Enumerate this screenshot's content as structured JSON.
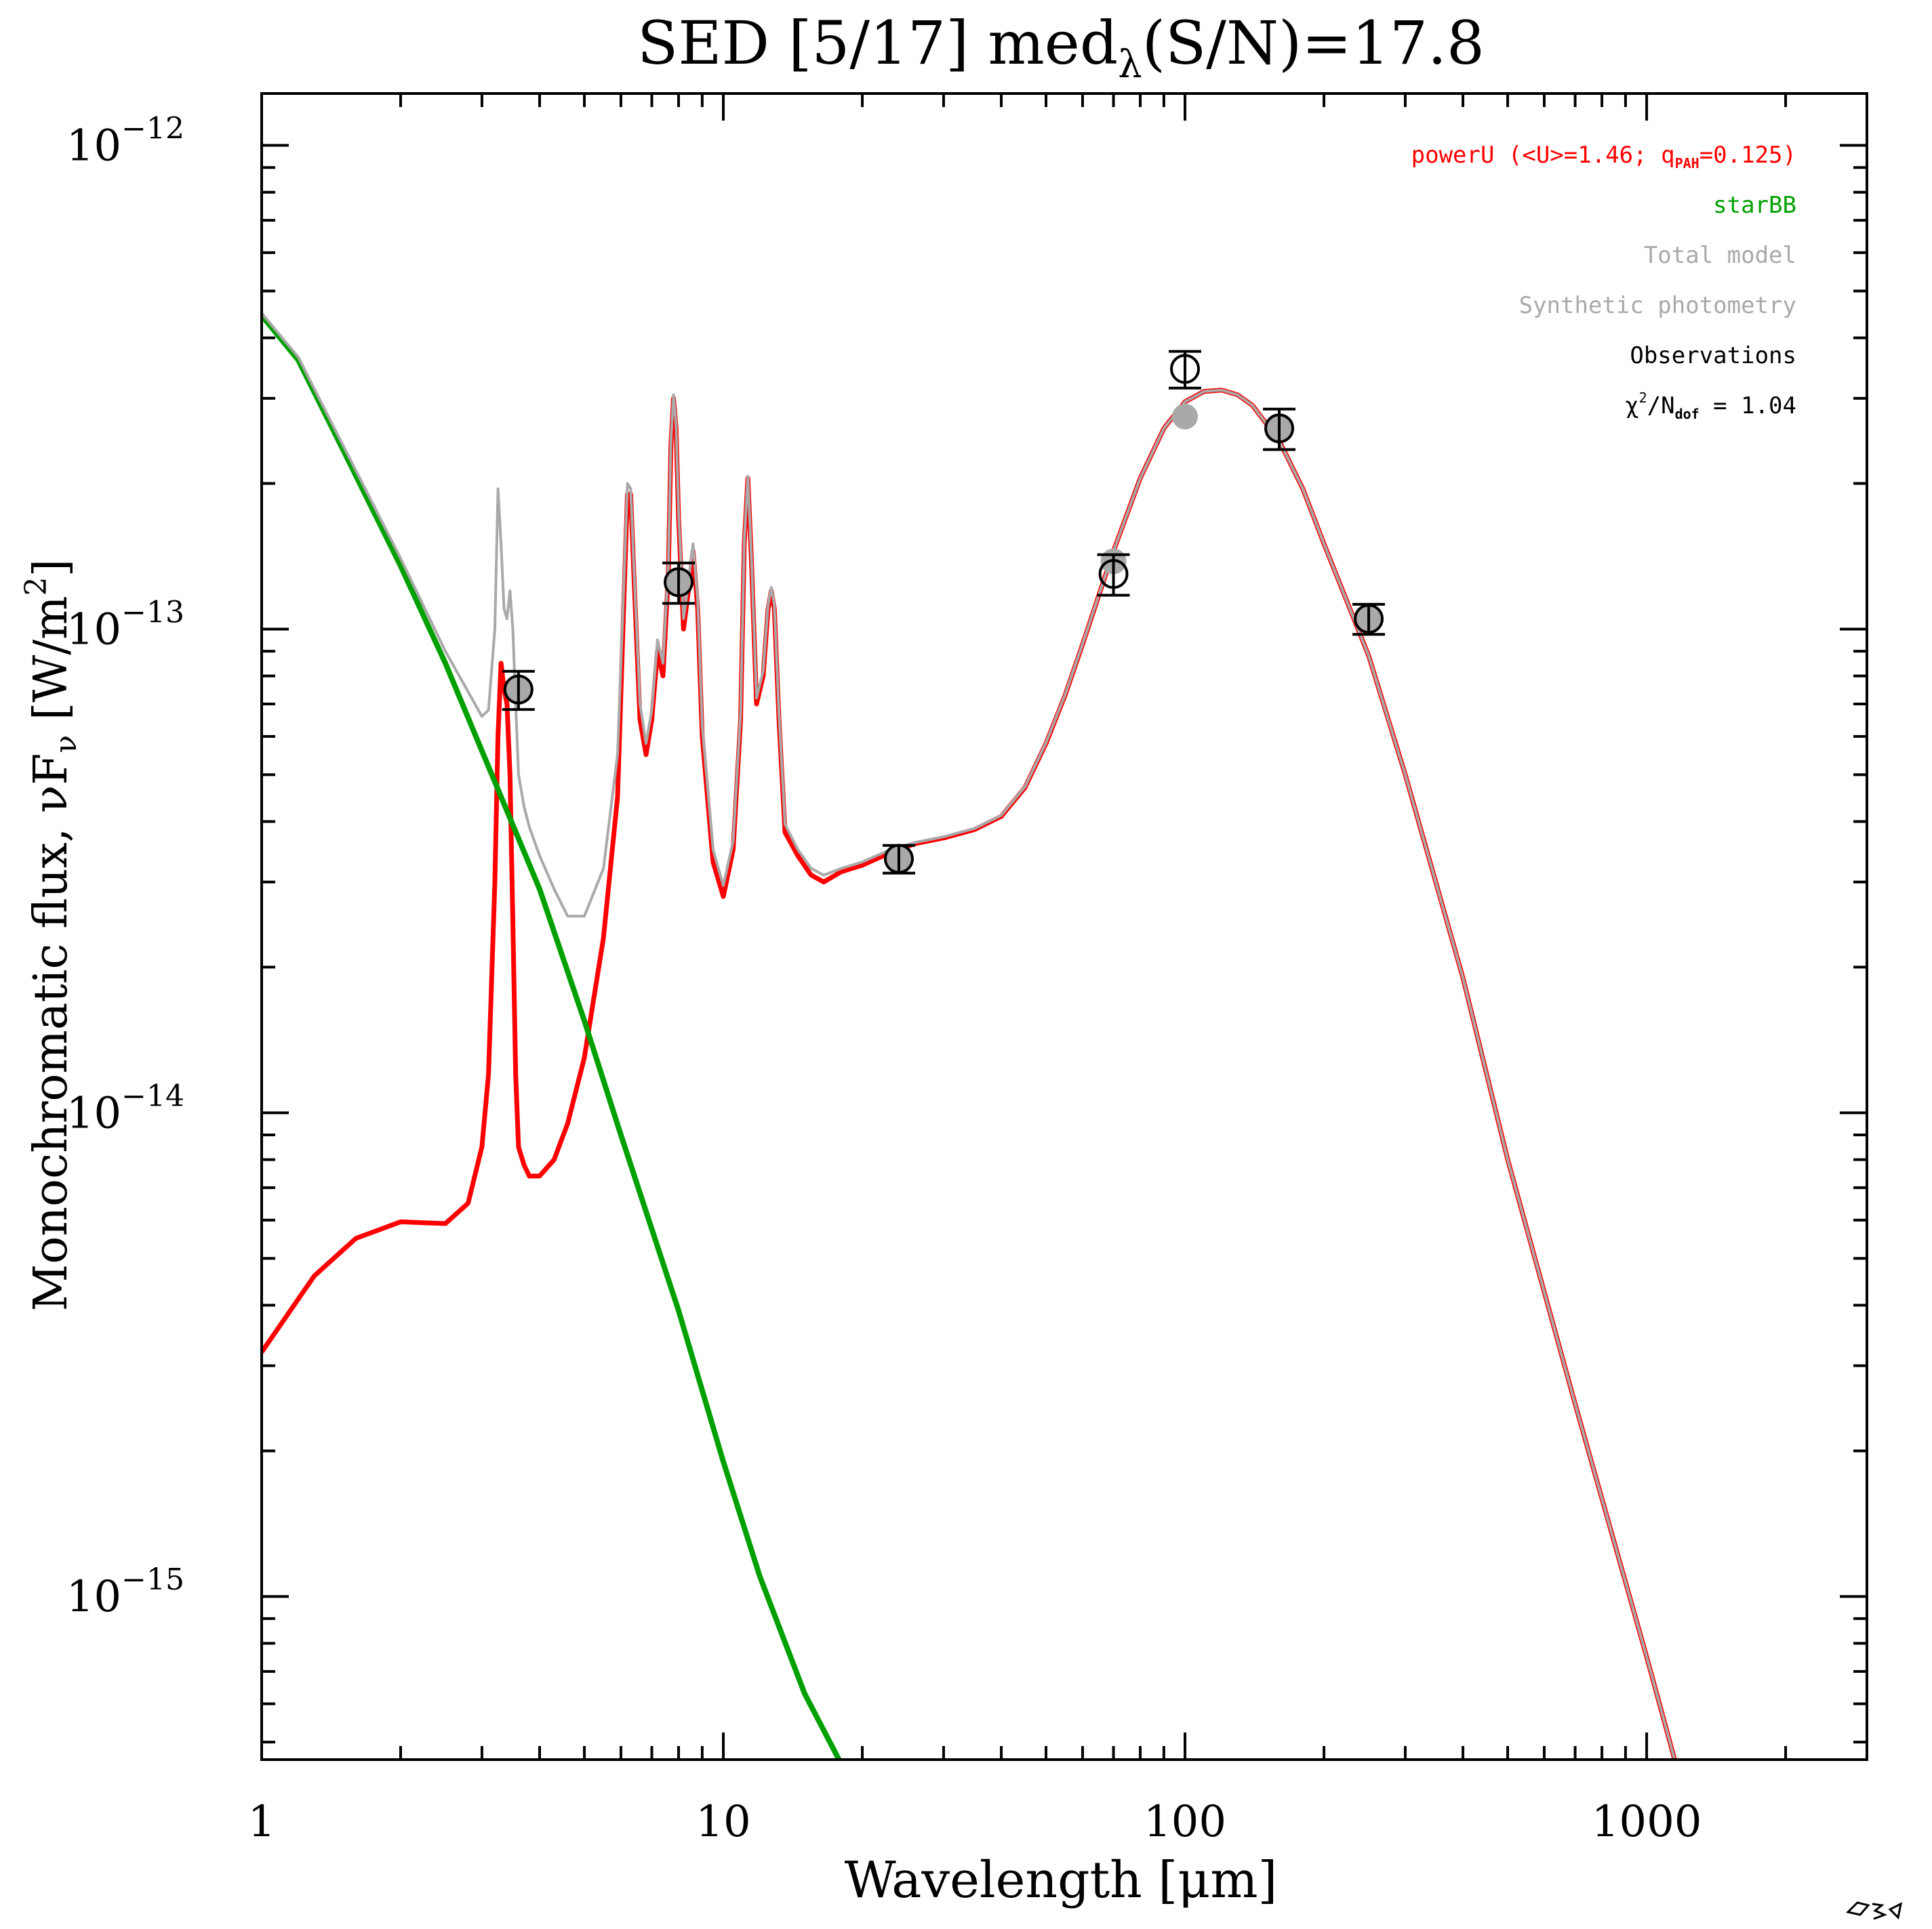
{
  "chart_data": {
    "type": "line",
    "title": "SED [5/17] med",
    "title_sub": "λ",
    "title_tail": "(S/N)=17.8",
    "xlabel": "Wavelength [μm]",
    "ylabel": "Monochromatic flux, νF",
    "ylabel_sub": "ν",
    "ylabel_units": " [W/m",
    "ylabel_units_sup": "2",
    "ylabel_units_end": "]",
    "xscale": "log",
    "yscale": "log",
    "xlim": [
      1,
      3000
    ],
    "ylim": [
      4.6e-16,
      1.28e-12
    ],
    "x_ticks": [
      {
        "value": 1,
        "label": "1"
      },
      {
        "value": 10,
        "label": "10"
      },
      {
        "value": 100,
        "label": "100"
      },
      {
        "value": 1000,
        "label": "1000"
      }
    ],
    "y_ticks": [
      {
        "value": 1e-15,
        "base": "10",
        "exp": "−15"
      },
      {
        "value": 1e-14,
        "base": "10",
        "exp": "−14"
      },
      {
        "value": 1e-13,
        "base": "10",
        "exp": "−13"
      },
      {
        "value": 1e-12,
        "base": "10",
        "exp": "−12"
      }
    ],
    "legend": {
      "position": "top-right",
      "entries": [
        {
          "name": "powerU",
          "text": "powerU (<U>=1.46; q",
          "sub": "PAH",
          "text_end": "=0.125)",
          "color": "#ff0000"
        },
        {
          "name": "starBB",
          "text": "starBB",
          "color": "#00a000"
        },
        {
          "name": "total",
          "text": "Total model",
          "color": "#a9a9a9"
        },
        {
          "name": "synth",
          "text": "Synthetic photometry",
          "color": "#a9a9a9"
        },
        {
          "name": "obs",
          "text": "Observations",
          "color": "#000000"
        }
      ],
      "chi2": {
        "symbol": "χ",
        "sup": "2",
        "text": "/N",
        "sub": "dof",
        "value": " = 1.04",
        "color": "#000000"
      }
    },
    "series": [
      {
        "name": "powerU",
        "color": "#ff0000",
        "x": [
          1.0,
          1.3,
          1.6,
          2.0,
          2.5,
          2.8,
          3.0,
          3.1,
          3.2,
          3.25,
          3.3,
          3.35,
          3.4,
          3.45,
          3.5,
          3.55,
          3.6,
          3.7,
          3.8,
          4.0,
          4.3,
          4.6,
          5.0,
          5.5,
          5.9,
          6.1,
          6.2,
          6.3,
          6.4,
          6.6,
          6.8,
          7.0,
          7.2,
          7.4,
          7.6,
          7.7,
          7.8,
          7.9,
          8.0,
          8.2,
          8.4,
          8.6,
          8.8,
          9.0,
          9.5,
          10.0,
          10.5,
          10.9,
          11.1,
          11.3,
          11.5,
          11.8,
          12.2,
          12.5,
          12.7,
          12.9,
          13.2,
          13.6,
          14.5,
          15.5,
          16.5,
          18,
          20,
          23,
          26,
          30,
          35,
          40,
          45,
          50,
          55,
          60,
          70,
          80,
          90,
          100,
          110,
          120,
          130,
          140,
          160,
          180,
          200,
          250,
          300,
          400,
          500,
          700,
          1000,
          1150
        ],
        "y": [
          3.2e-15,
          4.6e-15,
          5.5e-15,
          5.95e-15,
          5.9e-15,
          6.5e-15,
          8.5e-15,
          1.2e-14,
          3e-14,
          6e-14,
          8.5e-14,
          7.5e-14,
          7e-14,
          5e-14,
          2.5e-14,
          1.2e-14,
          8.5e-15,
          7.8e-15,
          7.4e-15,
          7.4e-15,
          8e-15,
          9.5e-15,
          1.3e-14,
          2.3e-14,
          4.5e-14,
          1.2e-13,
          1.9e-13,
          1.9e-13,
          1.3e-13,
          6.5e-14,
          5.5e-14,
          6.5e-14,
          9e-14,
          8e-14,
          1.3e-13,
          2.4e-13,
          3e-13,
          2.6e-13,
          1.7e-13,
          1e-13,
          1.2e-13,
          1.45e-13,
          1.1e-13,
          6e-14,
          3.3e-14,
          2.8e-14,
          3.5e-14,
          6.5e-14,
          1.5e-13,
          2.05e-13,
          1.4e-13,
          7e-14,
          8e-14,
          1.1e-13,
          1.2e-13,
          1.1e-13,
          6.5e-14,
          3.8e-14,
          3.4e-14,
          3.1e-14,
          3e-14,
          3.15e-14,
          3.25e-14,
          3.45e-14,
          3.6e-14,
          3.7e-14,
          3.85e-14,
          4.1e-14,
          4.7e-14,
          5.8e-14,
          7.3e-14,
          9.3e-14,
          1.45e-13,
          2.05e-13,
          2.6e-13,
          2.95e-13,
          3.1e-13,
          3.12e-13,
          3.05e-13,
          2.9e-13,
          2.45e-13,
          1.95e-13,
          1.5e-13,
          8.8e-14,
          5e-14,
          1.9e-14,
          8e-15,
          2.5e-15,
          7.5e-16,
          4.6e-16
        ]
      },
      {
        "name": "starBB",
        "color": "#00a000",
        "x": [
          1.0,
          1.2,
          1.5,
          2.0,
          2.5,
          3.0,
          4.0,
          5.0,
          6.0,
          8.0,
          10.0,
          12.0,
          15.0,
          17.8
        ],
        "y": [
          4.45e-13,
          3.6e-13,
          2.35e-13,
          1.35e-13,
          8.5e-14,
          5.6e-14,
          2.9e-14,
          1.55e-14,
          9e-15,
          3.9e-15,
          1.9e-15,
          1.1e-15,
          6.3e-16,
          4.6e-16
        ]
      },
      {
        "name": "Total model",
        "color": "#a9a9a9",
        "x": [
          1.0,
          1.2,
          1.5,
          2.0,
          2.5,
          3.0,
          3.1,
          3.2,
          3.25,
          3.3,
          3.35,
          3.4,
          3.45,
          3.5,
          3.55,
          3.6,
          3.7,
          3.8,
          4.0,
          4.3,
          4.6,
          5.0,
          5.5,
          5.9,
          6.1,
          6.2,
          6.3,
          6.4,
          6.6,
          6.8,
          7.0,
          7.2,
          7.4,
          7.6,
          7.7,
          7.8,
          7.9,
          8.0,
          8.2,
          8.4,
          8.6,
          8.8,
          9.0,
          9.5,
          10.0,
          10.5,
          10.9,
          11.1,
          11.3,
          11.5,
          11.8,
          12.2,
          12.5,
          12.7,
          12.9,
          13.2,
          13.6,
          14.5,
          15.5,
          16.5,
          18,
          20,
          23,
          26,
          30,
          35,
          40,
          45,
          50,
          55,
          60,
          70,
          80,
          90,
          100,
          110,
          120,
          130,
          140,
          160,
          180,
          200,
          250,
          300,
          400,
          500,
          700,
          1000,
          1150
        ],
        "y": [
          4.5e-13,
          3.65e-13,
          2.4e-13,
          1.4e-13,
          9e-14,
          6.6e-14,
          6.8e-14,
          1e-13,
          1.95e-13,
          1.5e-13,
          1.1e-13,
          1.05e-13,
          1.2e-13,
          1e-13,
          7e-14,
          5e-14,
          4.3e-14,
          3.9e-14,
          3.4e-14,
          2.9e-14,
          2.55e-14,
          2.55e-14,
          3.2e-14,
          5.5e-14,
          1.3e-13,
          2e-13,
          1.95e-13,
          1.35e-13,
          7e-14,
          5.8e-14,
          6.8e-14,
          9.5e-14,
          8.5e-14,
          1.35e-13,
          2.45e-13,
          3.05e-13,
          2.65e-13,
          1.75e-13,
          1.05e-13,
          1.25e-13,
          1.5e-13,
          1.15e-13,
          6.3e-14,
          3.5e-14,
          2.95e-14,
          3.65e-14,
          6.7e-14,
          1.52e-13,
          2.07e-13,
          1.42e-13,
          7.2e-14,
          8.2e-14,
          1.12e-13,
          1.22e-13,
          1.12e-13,
          6.7e-14,
          3.95e-14,
          3.5e-14,
          3.2e-14,
          3.1e-14,
          3.2e-14,
          3.3e-14,
          3.5e-14,
          3.62e-14,
          3.72e-14,
          3.87e-14,
          4.12e-14,
          4.72e-14,
          5.82e-14,
          7.32e-14,
          9.32e-14,
          1.45e-13,
          2.05e-13,
          2.6e-13,
          2.95e-13,
          3.1e-13,
          3.12e-13,
          3.05e-13,
          2.9e-13,
          2.45e-13,
          1.95e-13,
          1.5e-13,
          8.8e-14,
          5e-14,
          1.9e-14,
          8e-15,
          2.5e-15,
          7.5e-16,
          4.6e-16
        ]
      }
    ],
    "synthetic_photometry": {
      "color": "#a9a9a9",
      "x": [
        3.6,
        8.0,
        24,
        70,
        100,
        160,
        250
      ],
      "y": [
        7.5e-14,
        1.25e-13,
        3.35e-14,
        1.38e-13,
        2.75e-13,
        2.6e-13,
        1.05e-13
      ]
    },
    "observations": {
      "color": "#000000",
      "x": [
        3.6,
        8.0,
        24,
        70,
        100,
        160,
        250
      ],
      "y": [
        7.5e-14,
        1.25e-13,
        3.35e-14,
        1.3e-13,
        3.45e-13,
        2.6e-13,
        1.05e-13
      ],
      "yerr": [
        6.8e-15,
        1.2e-14,
        2.2e-15,
        1.25e-14,
        3e-14,
        2.5e-14,
        7.5e-15
      ]
    }
  }
}
